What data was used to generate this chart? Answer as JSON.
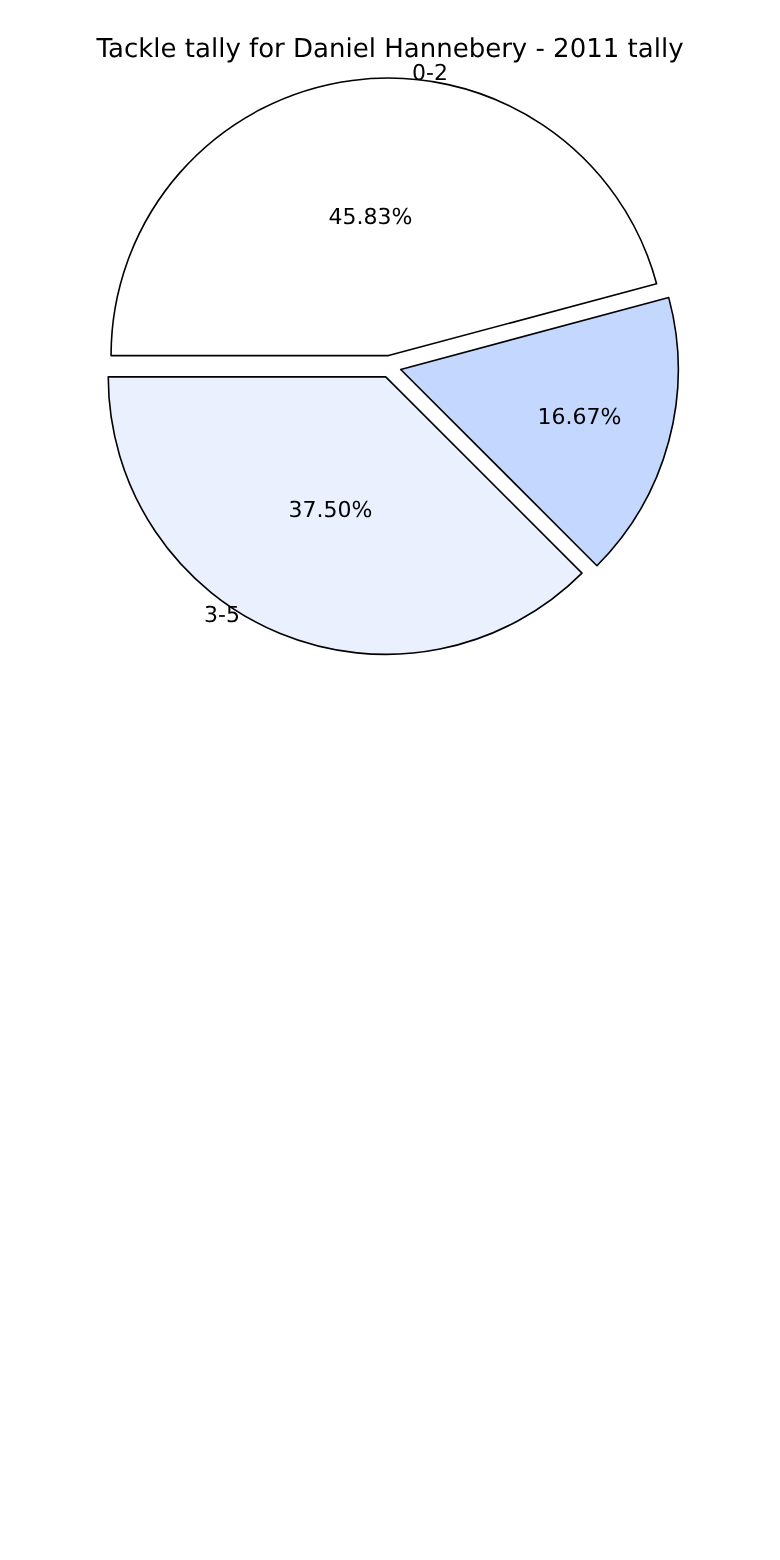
{
  "chart_data": {
    "type": "pie",
    "title": "Tackle tally for Daniel Hannebery - 2011 tally",
    "categories": [
      "0-2",
      "3-5",
      null
    ],
    "values": [
      45.83,
      37.5,
      16.67
    ],
    "colors": [
      "#ffffff",
      "#eaf0fd",
      "#c4d7ff"
    ],
    "value_labels": [
      "45.83%",
      "37.50%",
      "16.67%"
    ],
    "legend": false
  }
}
